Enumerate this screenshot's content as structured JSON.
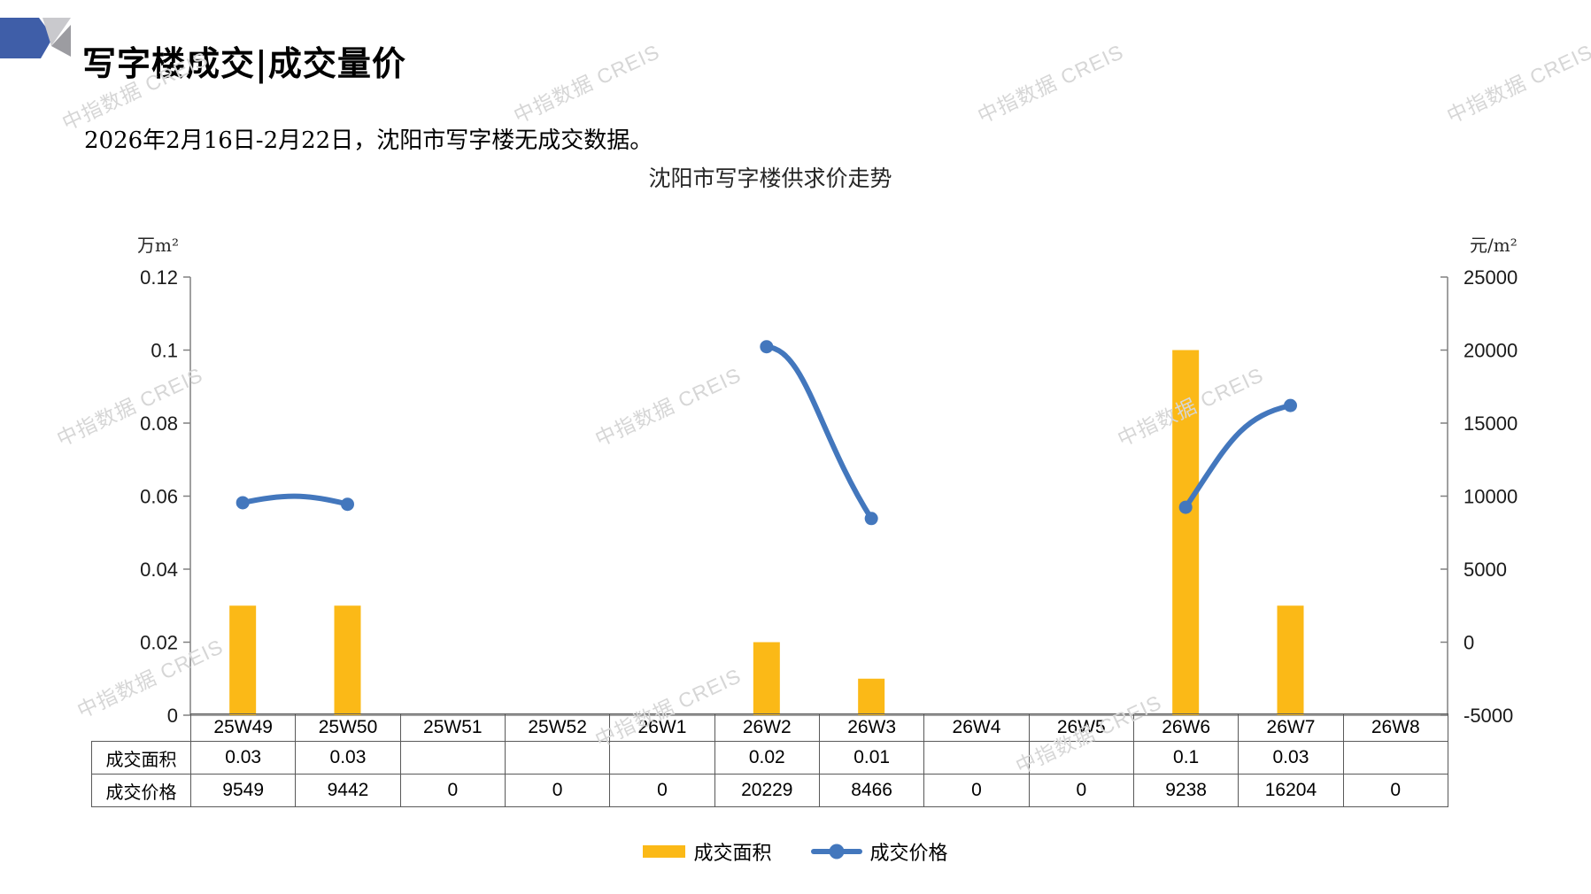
{
  "page": {
    "title": "写字楼成交|成交量价",
    "subtitle": "2026年2月16日-2月22日，沈阳市写字楼无成交数据。",
    "watermark_text": "中指数据 CREIS"
  },
  "chart_data": {
    "type": "combo-bar-line",
    "title": "沈阳市写字楼供求价走势",
    "categories": [
      "25W49",
      "25W50",
      "25W51",
      "25W52",
      "26W1",
      "26W2",
      "26W3",
      "26W4",
      "26W5",
      "26W6",
      "26W7",
      "26W8"
    ],
    "left_axis": {
      "unit": "万m²",
      "min": 0,
      "max": 0.12,
      "step": 0.02
    },
    "right_axis": {
      "unit": "元/m²",
      "min": -5000,
      "max": 25000,
      "step": 5000
    },
    "grid": false,
    "legend_position": "bottom",
    "series": [
      {
        "name": "成交面积",
        "type": "bar",
        "axis": "left",
        "color": "#FBB917",
        "values": [
          0.03,
          0.03,
          null,
          null,
          null,
          0.02,
          0.01,
          null,
          null,
          0.1,
          0.03,
          null
        ]
      },
      {
        "name": "成交价格",
        "type": "line",
        "axis": "right",
        "color": "#4377BD",
        "values": [
          9549,
          9442,
          null,
          null,
          null,
          20229,
          8466,
          null,
          null,
          9238,
          16204,
          null
        ]
      }
    ],
    "data_table": {
      "row_labels": [
        "成交面积",
        "成交价格"
      ],
      "rows": [
        [
          "0.03",
          "0.03",
          "",
          "",
          "",
          "0.02",
          "0.01",
          "",
          "",
          "0.1",
          "0.03",
          ""
        ],
        [
          "9549",
          "9442",
          "0",
          "0",
          "0",
          "20229",
          "8466",
          "0",
          "0",
          "9238",
          "16204",
          "0"
        ]
      ]
    }
  },
  "colors": {
    "bar": "#FBB917",
    "line": "#4377BD",
    "watermark": "#D6D6D6",
    "table_border": "#595959",
    "axis": "#808080",
    "tick_text": "#1A1A1A",
    "logo_blue": "#3F5EA8",
    "logo_gray_light": "#C9C9CD",
    "logo_gray_dark": "#9C9CA1"
  }
}
